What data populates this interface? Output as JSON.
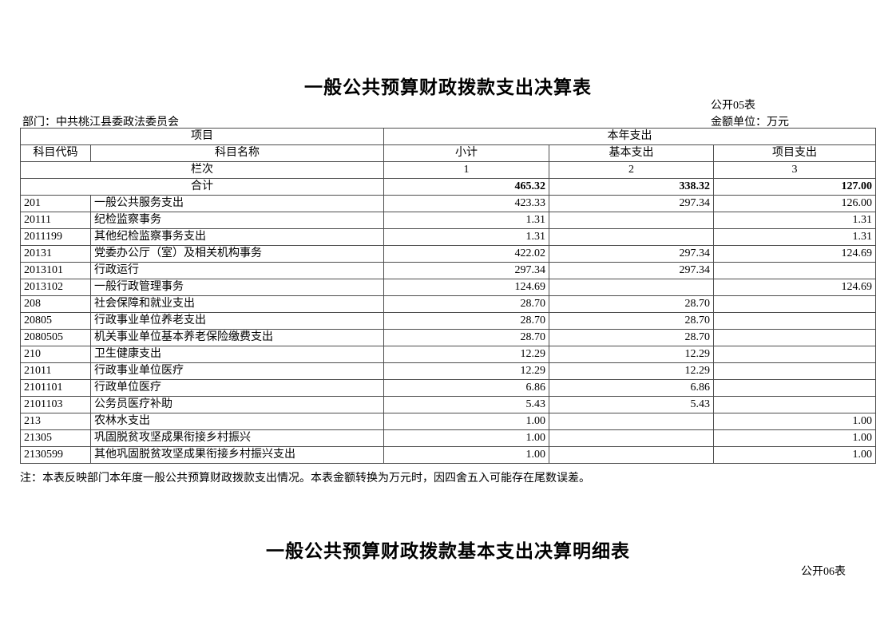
{
  "table1": {
    "title": "一般公共预算财政拨款支出决算表",
    "sheet_label": "公开05表",
    "department": "部门：中共桃江县委政法委员会",
    "unit_label": "金额单位：万元",
    "header": {
      "item_group": "项目",
      "year_expense_group": "本年支出",
      "code": "科目代码",
      "name": "科目名称",
      "subtotal": "小计",
      "basic": "基本支出",
      "project": "项目支出",
      "column_index_label": "栏次",
      "col_index_1": "1",
      "col_index_2": "2",
      "col_index_3": "3",
      "total_label": "合计"
    },
    "total": {
      "subtotal": "465.32",
      "basic": "338.32",
      "project": "127.00"
    },
    "rows": [
      {
        "code": "201",
        "name": "一般公共服务支出",
        "subtotal": "423.33",
        "basic": "297.34",
        "project": "126.00"
      },
      {
        "code": "20111",
        "name": "纪检监察事务",
        "subtotal": "1.31",
        "basic": "",
        "project": "1.31"
      },
      {
        "code": "2011199",
        "name": "其他纪检监察事务支出",
        "subtotal": "1.31",
        "basic": "",
        "project": "1.31"
      },
      {
        "code": "20131",
        "name": "党委办公厅（室）及相关机构事务",
        "subtotal": "422.02",
        "basic": "297.34",
        "project": "124.69"
      },
      {
        "code": "2013101",
        "name": "行政运行",
        "subtotal": "297.34",
        "basic": "297.34",
        "project": ""
      },
      {
        "code": "2013102",
        "name": "一般行政管理事务",
        "subtotal": "124.69",
        "basic": "",
        "project": "124.69"
      },
      {
        "code": "208",
        "name": "社会保障和就业支出",
        "subtotal": "28.70",
        "basic": "28.70",
        "project": ""
      },
      {
        "code": "20805",
        "name": "行政事业单位养老支出",
        "subtotal": "28.70",
        "basic": "28.70",
        "project": ""
      },
      {
        "code": "2080505",
        "name": "机关事业单位基本养老保险缴费支出",
        "subtotal": "28.70",
        "basic": "28.70",
        "project": ""
      },
      {
        "code": "210",
        "name": "卫生健康支出",
        "subtotal": "12.29",
        "basic": "12.29",
        "project": ""
      },
      {
        "code": "21011",
        "name": "行政事业单位医疗",
        "subtotal": "12.29",
        "basic": "12.29",
        "project": ""
      },
      {
        "code": "2101101",
        "name": "行政单位医疗",
        "subtotal": "6.86",
        "basic": "6.86",
        "project": ""
      },
      {
        "code": "2101103",
        "name": "公务员医疗补助",
        "subtotal": "5.43",
        "basic": "5.43",
        "project": ""
      },
      {
        "code": "213",
        "name": "农林水支出",
        "subtotal": "1.00",
        "basic": "",
        "project": "1.00"
      },
      {
        "code": "21305",
        "name": "巩固脱贫攻坚成果衔接乡村振兴",
        "subtotal": "1.00",
        "basic": "",
        "project": "1.00"
      },
      {
        "code": "2130599",
        "name": "其他巩固脱贫攻坚成果衔接乡村振兴支出",
        "subtotal": "1.00",
        "basic": "",
        "project": "1.00"
      }
    ],
    "note": "注：本表反映部门本年度一般公共预算财政拨款支出情况。本表金额转换为万元时，因四舍五入可能存在尾数误差。"
  },
  "table2": {
    "title": "一般公共预算财政拨款基本支出决算明细表",
    "sheet_label": "公开06表"
  }
}
